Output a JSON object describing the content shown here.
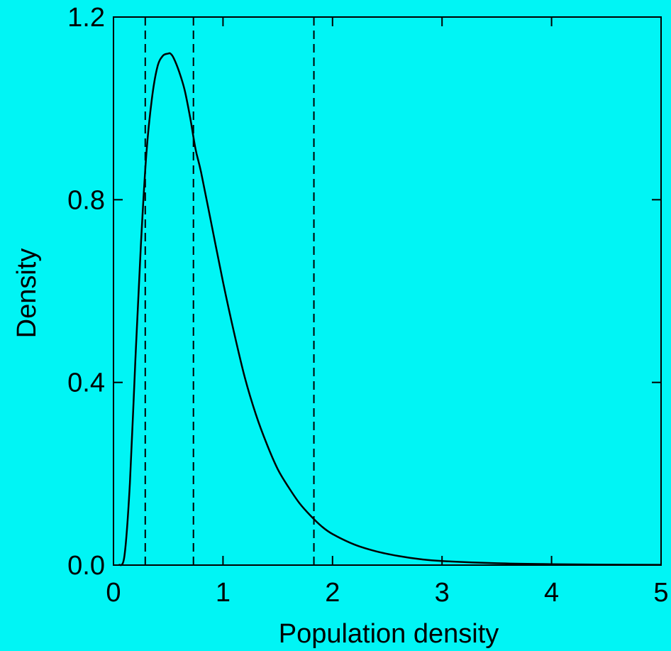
{
  "colors": {
    "background": "#00f5f5",
    "line": "#000000"
  },
  "chart_data": {
    "type": "line",
    "title": "",
    "xlabel": "Population density",
    "ylabel": "Density",
    "xlim": [
      0,
      5
    ],
    "ylim": [
      0,
      1.2
    ],
    "x_ticks": [
      0,
      1,
      2,
      3,
      4,
      5
    ],
    "x_tick_labels": [
      "0",
      "1",
      "2",
      "3",
      "4",
      "5"
    ],
    "y_ticks": [
      0.0,
      0.4,
      0.8,
      1.2
    ],
    "y_tick_labels": [
      "0.0",
      "0.4",
      "0.8",
      "1.2"
    ],
    "grid": false,
    "legend": "none",
    "series": [
      {
        "style": "solid",
        "x": [
          0.05,
          0.1,
          0.15,
          0.2,
          0.25,
          0.3,
          0.35,
          0.4,
          0.45,
          0.5,
          0.52,
          0.55,
          0.6,
          0.65,
          0.7,
          0.75,
          0.8,
          0.9,
          1.0,
          1.1,
          1.2,
          1.3,
          1.4,
          1.5,
          1.6,
          1.7,
          1.8,
          1.9,
          2.0,
          2.2,
          2.4,
          2.6,
          2.8,
          3.0,
          3.5,
          4.0,
          4.5,
          5.0
        ],
        "y": [
          0.0,
          0.02,
          0.18,
          0.45,
          0.7,
          0.9,
          1.02,
          1.09,
          1.115,
          1.12,
          1.12,
          1.11,
          1.08,
          1.04,
          0.98,
          0.91,
          0.86,
          0.74,
          0.62,
          0.51,
          0.41,
          0.33,
          0.265,
          0.21,
          0.17,
          0.135,
          0.108,
          0.085,
          0.068,
          0.045,
          0.03,
          0.02,
          0.013,
          0.009,
          0.004,
          0.002,
          0.001,
          0.0005
        ]
      }
    ],
    "vertical_lines": [
      {
        "x": 0.29,
        "style": "dashed"
      },
      {
        "x": 0.73,
        "style": "dashed"
      },
      {
        "x": 1.83,
        "style": "dashed"
      }
    ]
  }
}
